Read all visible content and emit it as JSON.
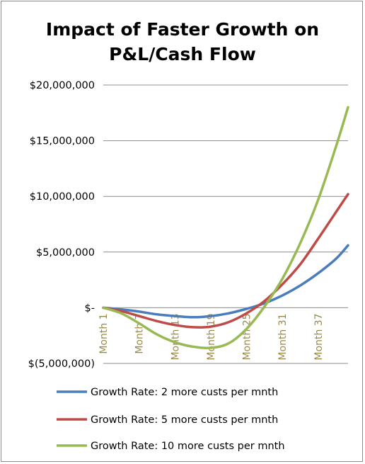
{
  "chart_data": {
    "type": "line",
    "title": "Impact of Faster Growth on P&L/Cash Flow",
    "title_lines": [
      "Impact of Faster Growth on",
      "P&L/Cash Flow"
    ],
    "xlabel": "",
    "ylabel": "",
    "ylim": [
      -5000000,
      20000000
    ],
    "yticks": [
      20000000,
      15000000,
      10000000,
      5000000,
      0,
      -5000000
    ],
    "ytick_labels": [
      "$20,000,000",
      "$15,000,000",
      "$10,000,000",
      "$5,000,000",
      "$-",
      "$(5,000,000)"
    ],
    "x_range": [
      1,
      42
    ],
    "xticks": [
      1,
      7,
      13,
      19,
      25,
      31,
      37
    ],
    "xtick_labels": [
      "Month 1",
      "Month 7",
      "Month 13",
      "Month 19",
      "Month 25",
      "Month 31",
      "Month 37"
    ],
    "grid": true,
    "legend_position": "bottom",
    "series": [
      {
        "name": "Growth Rate: 2 more custs per mnth",
        "color": "#4a7ebb",
        "x": [
          1,
          4,
          7,
          10,
          13,
          16,
          19,
          22,
          25,
          28,
          31,
          34,
          37,
          40,
          42
        ],
        "values": [
          0,
          -150000,
          -350000,
          -600000,
          -750000,
          -850000,
          -750000,
          -500000,
          -100000,
          400000,
          1100000,
          2000000,
          3100000,
          4400000,
          5600000
        ]
      },
      {
        "name": "Growth Rate: 5 more custs per mnth",
        "color": "#be4b48",
        "x": [
          1,
          4,
          7,
          10,
          13,
          16,
          19,
          22,
          25,
          28,
          31,
          34,
          37,
          40,
          42
        ],
        "values": [
          0,
          -300000,
          -750000,
          -1200000,
          -1550000,
          -1750000,
          -1700000,
          -1300000,
          -500000,
          600000,
          2100000,
          3900000,
          6200000,
          8600000,
          10200000
        ]
      },
      {
        "name": "Growth Rate: 10 more custs per mnth",
        "color": "#98b954",
        "x": [
          1,
          4,
          7,
          10,
          13,
          16,
          19,
          22,
          25,
          28,
          31,
          34,
          37,
          40,
          42
        ],
        "values": [
          0,
          -500000,
          -1400000,
          -2400000,
          -3100000,
          -3500000,
          -3600000,
          -3200000,
          -1900000,
          100000,
          2600000,
          5800000,
          9700000,
          14500000,
          18000000
        ]
      }
    ]
  }
}
